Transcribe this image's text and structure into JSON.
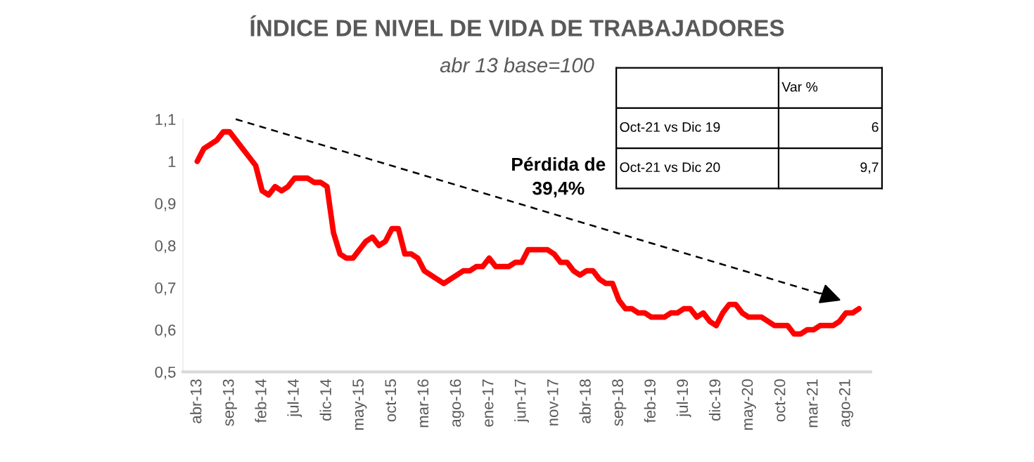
{
  "chart_data": {
    "type": "line",
    "title": "ÍNDICE DE NIVEL DE VIDA DE TRABAJADORES",
    "subtitle": "abr 13 base=100",
    "categories": [
      "abr-13",
      null,
      null,
      null,
      null,
      "sep-13",
      null,
      null,
      null,
      null,
      "feb-14",
      null,
      null,
      null,
      null,
      "jul-14",
      null,
      null,
      null,
      null,
      "dic-14",
      null,
      null,
      null,
      null,
      "may-15",
      null,
      null,
      null,
      null,
      "oct-15",
      null,
      null,
      null,
      null,
      "mar-16",
      null,
      null,
      null,
      null,
      "ago-16",
      null,
      null,
      null,
      null,
      "ene-17",
      null,
      null,
      null,
      null,
      "jun-17",
      null,
      null,
      null,
      null,
      "nov-17",
      null,
      null,
      null,
      null,
      "abr-18",
      null,
      null,
      null,
      null,
      "sep-18",
      null,
      null,
      null,
      null,
      "feb-19",
      null,
      null,
      null,
      null,
      "jul-19",
      null,
      null,
      null,
      null,
      "dic-19",
      null,
      null,
      null,
      null,
      "may-20",
      null,
      null,
      null,
      null,
      "oct-20",
      null,
      null,
      null,
      null,
      "mar-21",
      null,
      null,
      null,
      null,
      "ago-21",
      null,
      null
    ],
    "series": [
      {
        "color": "#ff0000",
        "values": [
          1.0,
          1.03,
          1.04,
          1.05,
          1.07,
          1.07,
          1.05,
          1.03,
          1.01,
          0.99,
          0.93,
          0.92,
          0.94,
          0.93,
          0.94,
          0.96,
          0.96,
          0.96,
          0.95,
          0.95,
          0.94,
          0.83,
          0.78,
          0.77,
          0.77,
          0.79,
          0.81,
          0.82,
          0.8,
          0.81,
          0.84,
          0.84,
          0.78,
          0.78,
          0.77,
          0.74,
          0.73,
          0.72,
          0.71,
          0.72,
          0.73,
          0.74,
          0.74,
          0.75,
          0.75,
          0.77,
          0.75,
          0.75,
          0.75,
          0.76,
          0.76,
          0.79,
          0.79,
          0.79,
          0.79,
          0.78,
          0.76,
          0.76,
          0.74,
          0.73,
          0.74,
          0.74,
          0.72,
          0.71,
          0.71,
          0.67,
          0.65,
          0.65,
          0.64,
          0.64,
          0.63,
          0.63,
          0.63,
          0.64,
          0.64,
          0.65,
          0.65,
          0.63,
          0.64,
          0.62,
          0.61,
          0.64,
          0.66,
          0.66,
          0.64,
          0.63,
          0.63,
          0.63,
          0.62,
          0.61,
          0.61,
          0.61,
          0.59,
          0.59,
          0.6,
          0.6,
          0.61,
          0.61,
          0.61,
          0.62,
          0.64,
          0.64,
          0.65
        ]
      }
    ],
    "ylim": [
      0.5,
      1.1
    ],
    "yticks": [
      {
        "value": 0.5,
        "label": "0,5"
      },
      {
        "value": 0.6,
        "label": "0,6"
      },
      {
        "value": 0.7,
        "label": "0,7"
      },
      {
        "value": 0.8,
        "label": "0,8"
      },
      {
        "value": 0.9,
        "label": "0,9"
      },
      1,
      {
        "value": 1.1,
        "label": "1,1"
      }
    ],
    "grid": false,
    "annotations": [
      "Pérdida de\n39,4%",
      "Var %",
      "Oct-21 vs Dic 19",
      "6",
      "Oct-21 vs Dic 20",
      "9,7"
    ]
  }
}
